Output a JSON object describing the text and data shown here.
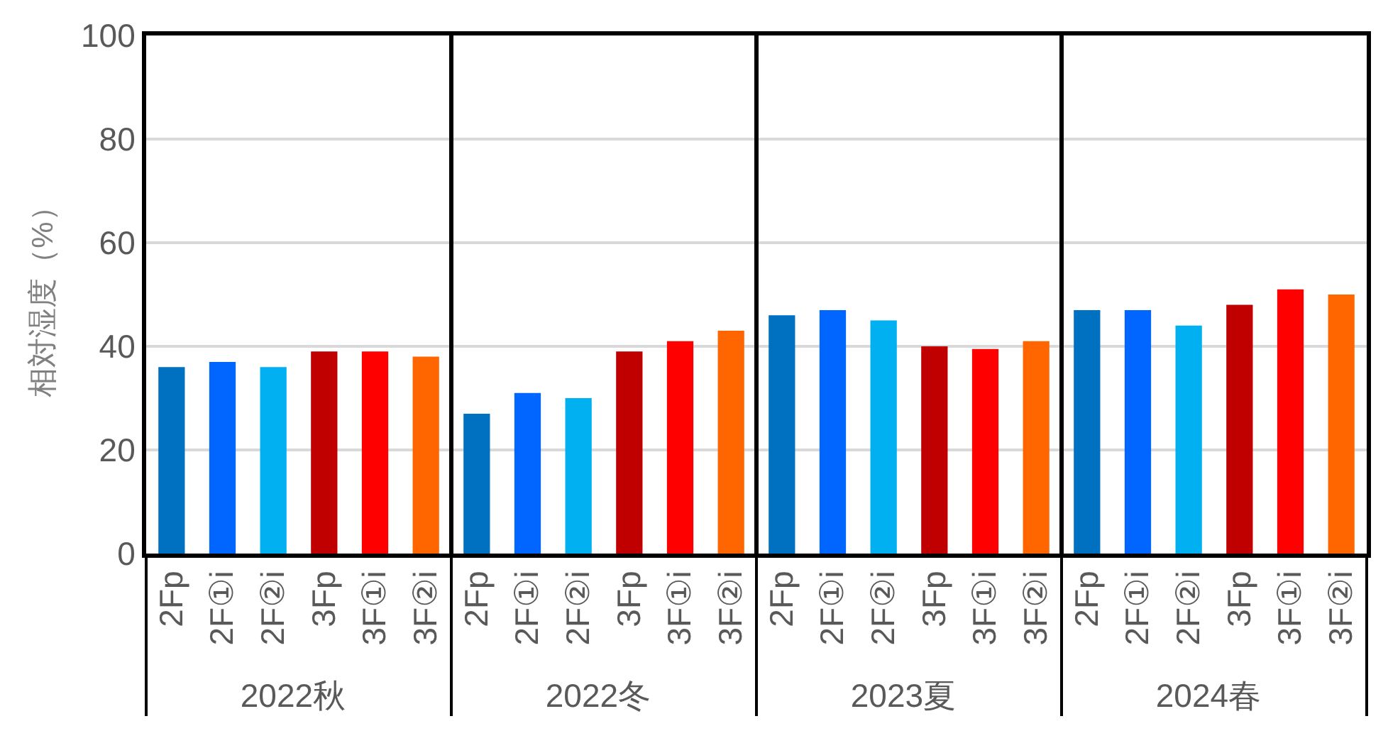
{
  "chart_data": {
    "type": "bar",
    "ylabel": "相対湿度（%）",
    "categories": [
      "2022秋",
      "2022冬",
      "2023夏",
      "2024春"
    ],
    "series": [
      {
        "name": "2Fp",
        "color": "#0070c0",
        "values": [
          36,
          27,
          46,
          47
        ]
      },
      {
        "name": "2F①i",
        "color": "#0066ff",
        "values": [
          37,
          31,
          47,
          47
        ]
      },
      {
        "name": "2F②i",
        "color": "#00b0f0",
        "values": [
          36,
          30,
          45,
          44
        ]
      },
      {
        "name": "3Fp",
        "color": "#c00000",
        "values": [
          39,
          39,
          40,
          48
        ]
      },
      {
        "name": "3F①i",
        "color": "#ff0000",
        "values": [
          39,
          41,
          39.5,
          51
        ]
      },
      {
        "name": "3F②i",
        "color": "#ff6600",
        "values": [
          38,
          43,
          41,
          50
        ]
      }
    ],
    "ylim": [
      0,
      100
    ],
    "yticks": [
      0,
      20,
      40,
      60,
      80,
      100
    ],
    "grid": "y"
  }
}
